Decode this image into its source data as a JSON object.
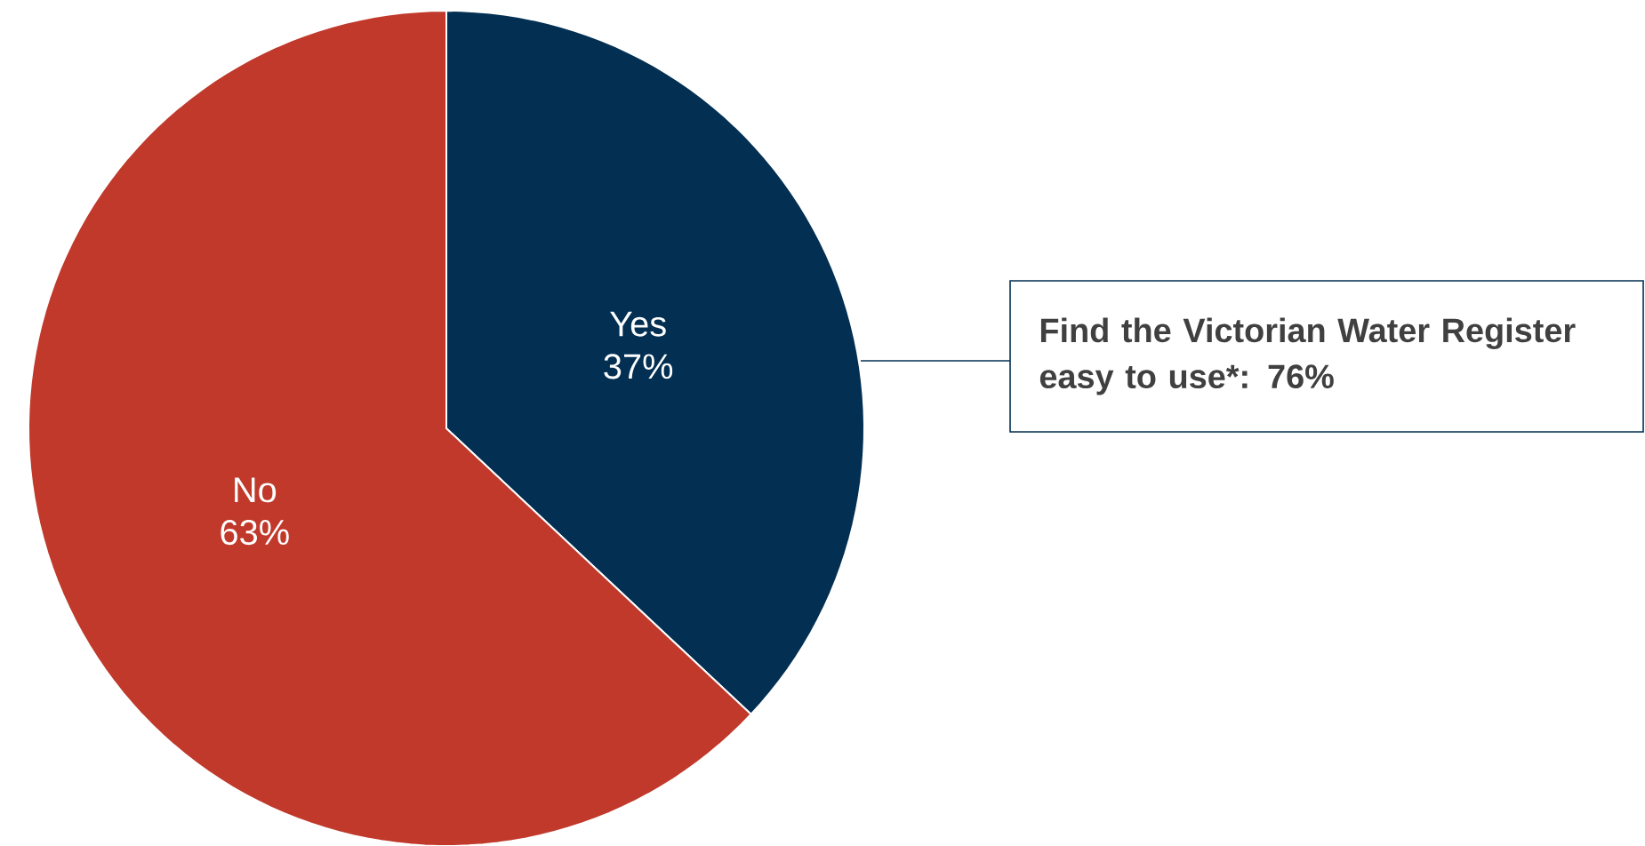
{
  "chart_data": {
    "type": "pie",
    "categories": [
      "Yes",
      "No"
    ],
    "values": [
      37,
      63
    ],
    "colors": [
      "#022f52",
      "#c0392b"
    ],
    "value_labels": [
      "37%",
      "63%"
    ],
    "annotations": [
      "Find the Victorian Water Register easy to use*: 76%"
    ]
  }
}
